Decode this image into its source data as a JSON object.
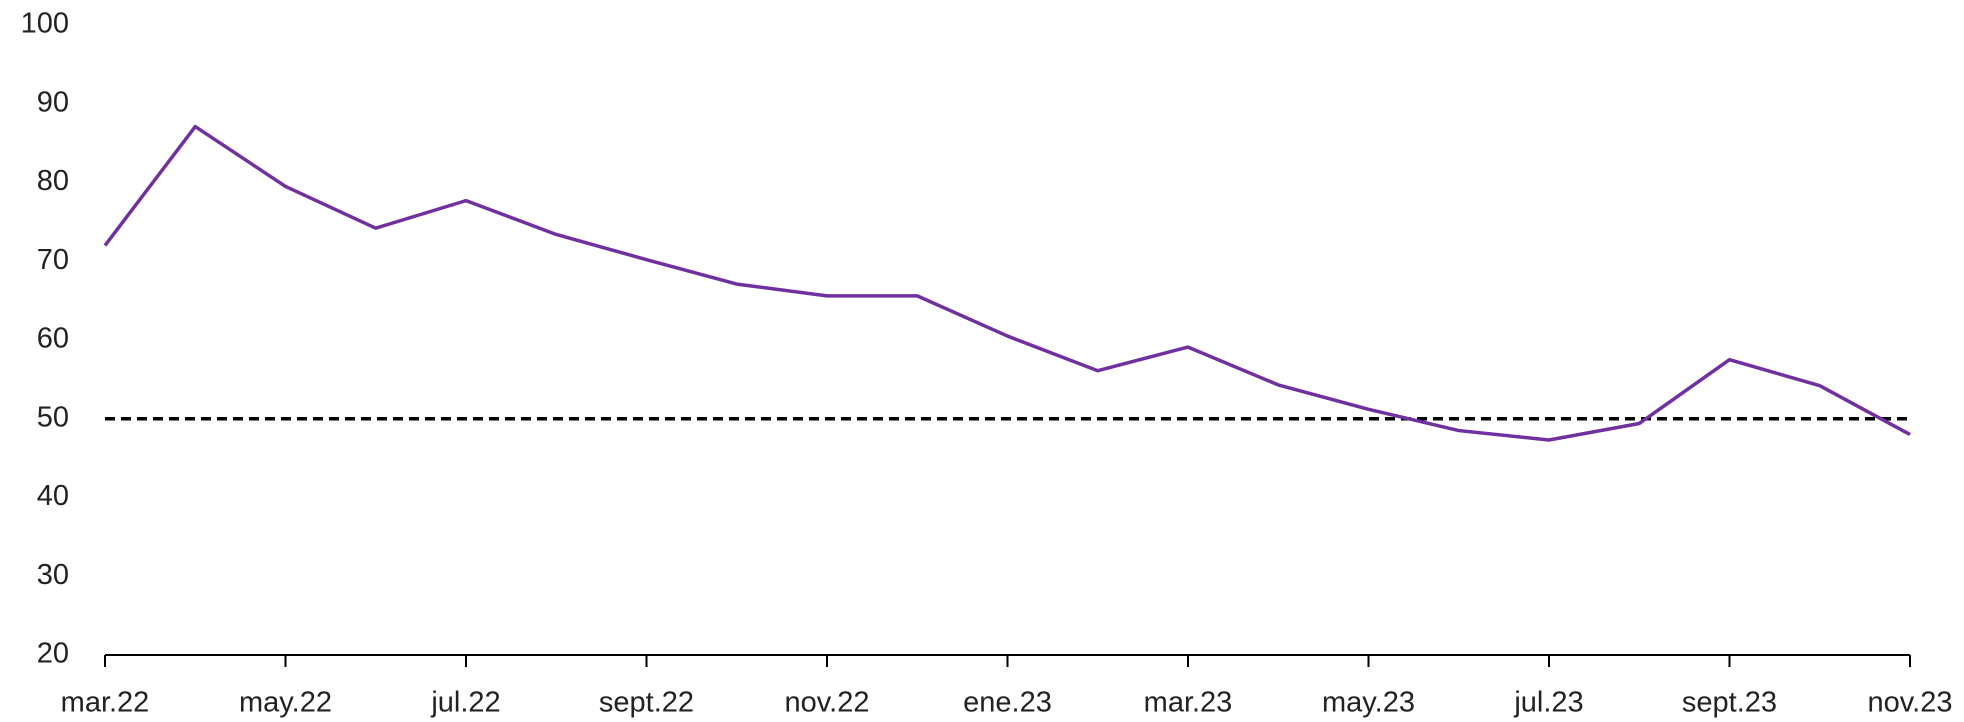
{
  "chart_data": {
    "type": "line",
    "categories": [
      "mar.22",
      null,
      "may.22",
      null,
      "jul.22",
      null,
      "sept.22",
      null,
      "nov.22",
      null,
      "ene.23",
      null,
      "mar.23",
      null,
      "may.23",
      null,
      "jul.23",
      null,
      "sept.23",
      null,
      "nov.23"
    ],
    "series": [
      {
        "color": "#7030a0",
        "values": [
          72.0,
          87.1,
          79.5,
          74.2,
          77.7,
          73.4,
          70.2,
          67.1,
          65.6,
          65.6,
          60.5,
          56.1,
          59.1,
          54.3,
          51.2,
          48.5,
          47.3,
          49.4,
          57.5,
          54.2,
          48.0
        ]
      }
    ],
    "reference_line": {
      "value": 50,
      "color": "#000000",
      "dashed": true
    },
    "ylim": [
      20,
      100
    ],
    "yticks": [
      20,
      30,
      40,
      50,
      60,
      70,
      80,
      90,
      100
    ],
    "grid": false
  }
}
